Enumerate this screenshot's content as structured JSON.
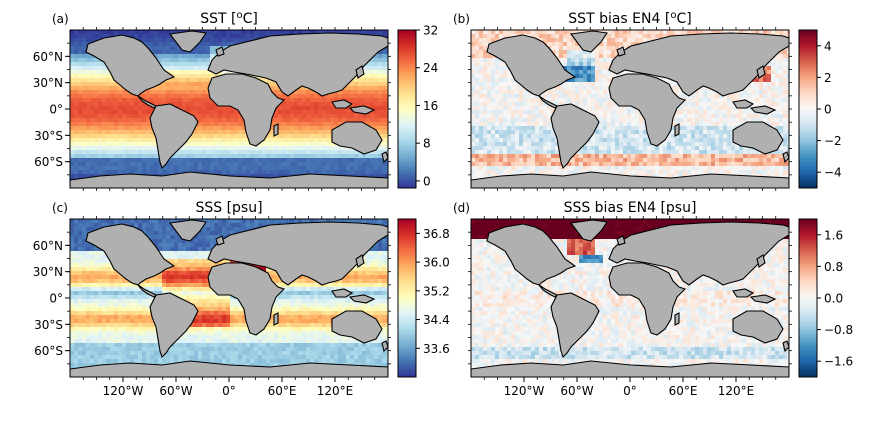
{
  "colormaps": {
    "rdylbu_r": [
      "#313695",
      "#4575b4",
      "#74add1",
      "#abd9e9",
      "#e0f3f8",
      "#ffffbf",
      "#fee090",
      "#fdae61",
      "#f46d43",
      "#d73027",
      "#a50026"
    ],
    "rdbu_r": [
      "#053061",
      "#2166ac",
      "#4393c3",
      "#92c5de",
      "#d1e5f0",
      "#f7f7f7",
      "#fddbc7",
      "#f4a582",
      "#d6604d",
      "#b2182b",
      "#67001f"
    ]
  },
  "colors": {
    "land": "#b0b0b0",
    "coast": "#000000"
  },
  "axes": {
    "lat_ticks": [
      "60°N",
      "30°N",
      "0°",
      "30°S",
      "60°S"
    ],
    "lon_ticks": [
      "120°W",
      "60°W",
      "0°",
      "60°E",
      "120°E"
    ]
  },
  "panels": [
    {
      "tag": "(a)",
      "title": "SST [°C]",
      "title_base": "SST [",
      "title_sup": "o",
      "title_end": "C]",
      "cmap": "rdylbu_r",
      "range": [
        -1.5,
        32
      ],
      "cbar_ticks": [
        "32",
        "24",
        "16",
        "8",
        "0"
      ],
      "field": "sst",
      "show_lat": true,
      "show_lon": false
    },
    {
      "tag": "(b)",
      "title": "SST bias EN4 [°C]",
      "title_base": "SST bias EN4 [",
      "title_sup": "o",
      "title_end": "C]",
      "cmap": "rdbu_r",
      "range": [
        -5,
        5
      ],
      "cbar_ticks": [
        "4",
        "2",
        "0",
        "−2",
        "−4"
      ],
      "field": "sst_bias",
      "show_lat": false,
      "show_lon": false
    },
    {
      "tag": "(c)",
      "title": "SSS [psu]",
      "title_base": "SSS [psu]",
      "title_sup": "",
      "title_end": "",
      "cmap": "rdylbu_r",
      "range": [
        32.8,
        37.2
      ],
      "cbar_ticks": [
        "36.8",
        "36.0",
        "35.2",
        "34.4",
        "33.6"
      ],
      "field": "sss",
      "show_lat": true,
      "show_lon": true
    },
    {
      "tag": "(d)",
      "title": "SSS bias EN4 [psu]",
      "title_base": "SSS bias EN4 [psu]",
      "title_sup": "",
      "title_end": "",
      "cmap": "rdbu_r",
      "range": [
        -2,
        2
      ],
      "cbar_ticks": [
        "1.6",
        "0.8",
        "0.0",
        "−0.8",
        "−1.6"
      ],
      "field": "sss_bias",
      "show_lat": false,
      "show_lon": true
    }
  ]
}
